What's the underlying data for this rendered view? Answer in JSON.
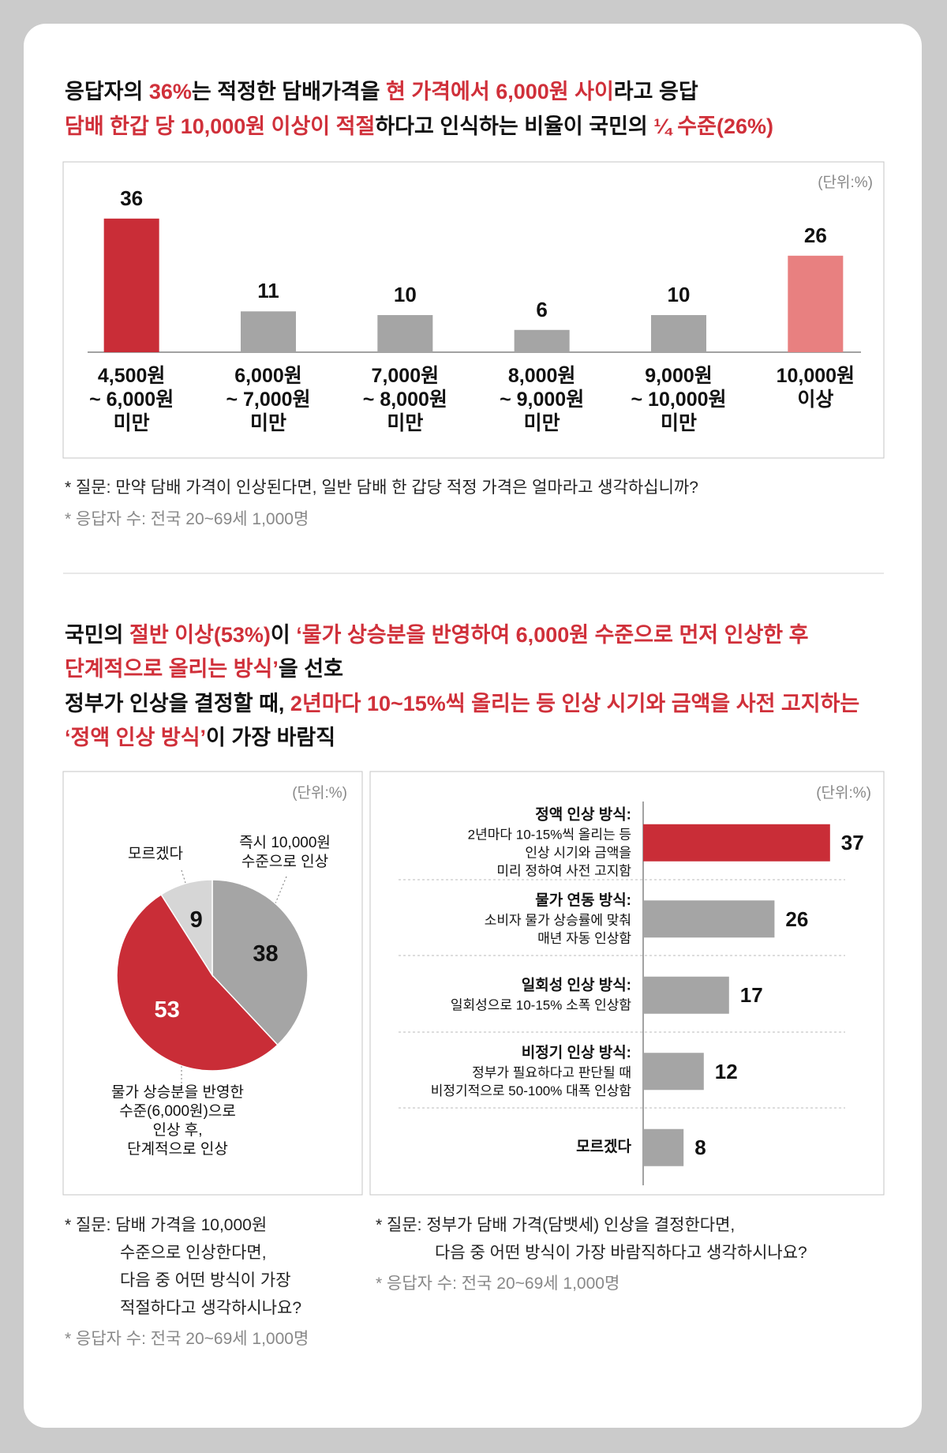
{
  "headline_1": [
    [
      {
        "text": "응답자의 ",
        "color": "#111111"
      },
      {
        "text": "36%",
        "color": "#d0303a"
      },
      {
        "text": "는 적정한 담배가격을 ",
        "color": "#111111"
      },
      {
        "text": "현 가격에서 6,000원 사이",
        "color": "#d0303a"
      },
      {
        "text": "라고 응답",
        "color": "#111111"
      }
    ],
    [
      {
        "text": "담배 한갑 당 10,000원 이상이 적절",
        "color": "#d0303a"
      },
      {
        "text": "하다고 인식하는 비율이 국민의 ",
        "color": "#111111"
      },
      {
        "text": "¼ 수준(26%)",
        "color": "#d0303a"
      }
    ]
  ],
  "notes_1": {
    "question_lines": [
      "* 질문: 만약 담배 가격이 인상된다면, 일반 담배 한 갑당 적정 가격은 얼마라고 생각하십니까?"
    ],
    "respondents": "* 응답자 수: 전국 20~69세 1,000명"
  },
  "headline_2": [
    [
      {
        "text": "국민의 ",
        "color": "#111111"
      },
      {
        "text": "절반 이상(53%)",
        "color": "#d0303a"
      },
      {
        "text": "이 ",
        "color": "#111111"
      },
      {
        "text": "‘물가 상승분을 반영하여 6,000원 수준으로 먼저 인상한 후",
        "color": "#d0303a"
      }
    ],
    [
      {
        "text": "단계적으로 올리는 방식’",
        "color": "#d0303a"
      },
      {
        "text": "을 선호",
        "color": "#111111"
      }
    ],
    [
      {
        "text": "정부가 인상을 결정할 때, ",
        "color": "#111111"
      },
      {
        "text": "2년마다 10~15%씩 올리는 등 인상 시기와 금액을 사전 고지하는",
        "color": "#d0303a"
      }
    ],
    [
      {
        "text": "‘정액 인상 방식’",
        "color": "#d0303a"
      },
      {
        "text": "이 가장 바람직",
        "color": "#111111"
      }
    ]
  ],
  "notes_2": {
    "question_lines": [
      "* 질문: 담배 가격을 10,000원",
      "수준으로 인상한다면,",
      "다음 중 어떤 방식이 가장",
      "적절하다고 생각하시나요?"
    ],
    "respondents": "* 응답자 수: 전국 20~69세 1,000명"
  },
  "notes_3": {
    "question_lines": [
      "* 질문: 정부가 담배 가격(담뱃세) 인상을 결정한다면,",
      "다음 중 어떤 방식이 가장 바람직하다고 생각하시나요?"
    ],
    "respondents": "* 응답자 수: 전국 20~69세 1,000명"
  },
  "chart_data": [
    {
      "type": "bar",
      "unit": "(단위:%)",
      "categories": [
        "4,500원\n~ 6,000원\n미만",
        "6,000원\n~ 7,000원\n미만",
        "7,000원\n~ 8,000원\n미만",
        "8,000원\n~ 9,000원\n미만",
        "9,000원\n~ 10,000원\n미만",
        "10,000원\n이상"
      ],
      "values": [
        36,
        11,
        10,
        6,
        10,
        26
      ],
      "colors": [
        "#c92d37",
        "#a5a5a5",
        "#a5a5a5",
        "#a5a5a5",
        "#a5a5a5",
        "#e88080"
      ],
      "ylim": [
        0,
        40
      ]
    },
    {
      "type": "pie",
      "unit": "(단위:%)",
      "categories": [
        "즉시 10,000원\n수준으로 인상",
        "물가 상승분을 반영한\n수준(6,000원)으로\n인상 후,\n단계적으로 인상",
        "모르겠다"
      ],
      "values": [
        38,
        53,
        9
      ],
      "colors": [
        "#a5a5a5",
        "#c92d37",
        "#d6d6d6"
      ],
      "label_colors": [
        "#111111",
        "#ffffff",
        "#111111"
      ]
    },
    {
      "type": "hbar",
      "unit": "(단위:%)",
      "categories": [
        "정액 인상 방식:",
        "물가 연동 방식:",
        "일회성 인상 방식:",
        "비정기 인상 방식:",
        "모르겠다"
      ],
      "descriptions": [
        "2년마다 10-15%씩 올리는 등\n인상 시기와 금액을\n미리 정하여 사전 고지함",
        "소비자 물가 상승률에 맞춰\n매년 자동 인상함",
        "일회성으로 10-15% 소폭 인상함",
        "정부가 필요하다고 판단될 때\n비정기적으로 50-100% 대폭 인상함",
        null
      ],
      "values": [
        37,
        26,
        17,
        12,
        8
      ],
      "colors": [
        "#c92d37",
        "#a5a5a5",
        "#a5a5a5",
        "#a5a5a5",
        "#a5a5a5"
      ],
      "xlim": [
        0,
        40
      ]
    }
  ]
}
